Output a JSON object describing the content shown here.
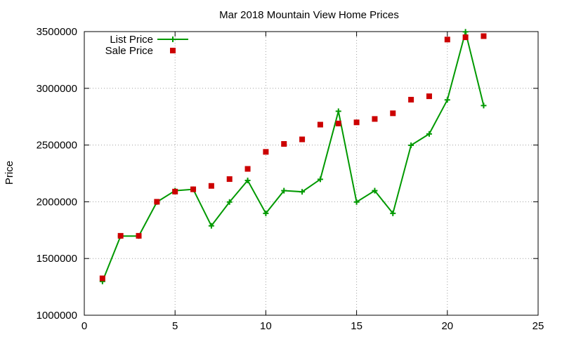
{
  "chart_data": {
    "type": "line",
    "title": "Mar 2018 Mountain View Home Prices",
    "xlabel": "",
    "ylabel": "Price",
    "xlim": [
      0,
      25
    ],
    "ylim": [
      1000000,
      3500000
    ],
    "x_ticks": [
      0,
      5,
      10,
      15,
      20,
      25
    ],
    "y_ticks": [
      1000000,
      1500000,
      2000000,
      2500000,
      3000000,
      3500000
    ],
    "x_tick_labels": [
      "0",
      "5",
      "10",
      "15",
      "20",
      "25"
    ],
    "y_tick_labels": [
      "1000000",
      "1500000",
      "2000000",
      "2500000",
      "3000000",
      "3500000"
    ],
    "grid": true,
    "legend_position": "top-left",
    "series": [
      {
        "name": "List Price",
        "style": "line-with-plus-markers",
        "color": "#009900",
        "x": [
          1,
          2,
          3,
          4,
          5,
          6,
          7,
          8,
          9,
          10,
          11,
          12,
          13,
          14,
          15,
          16,
          17,
          18,
          19,
          20,
          21,
          22
        ],
        "values": [
          1298000,
          1698000,
          1698000,
          1998000,
          2098000,
          2110000,
          1788000,
          1998000,
          2188000,
          1898000,
          2098000,
          2088000,
          2198000,
          2798000,
          1998000,
          2098000,
          1898000,
          2498000,
          2598000,
          2898000,
          3498000,
          2848000
        ]
      },
      {
        "name": "Sale Price",
        "style": "square-markers",
        "color": "#cc0000",
        "x": [
          1,
          2,
          3,
          4,
          5,
          6,
          7,
          8,
          9,
          10,
          11,
          12,
          13,
          14,
          15,
          16,
          17,
          18,
          19,
          20,
          21,
          22
        ],
        "values": [
          1325000,
          1700000,
          1700000,
          2000000,
          2090000,
          2110000,
          2140000,
          2200000,
          2290000,
          2440000,
          2510000,
          2550000,
          2680000,
          2690000,
          2700000,
          2730000,
          2780000,
          2900000,
          2930000,
          3430000,
          3450000,
          3460000
        ]
      }
    ]
  }
}
